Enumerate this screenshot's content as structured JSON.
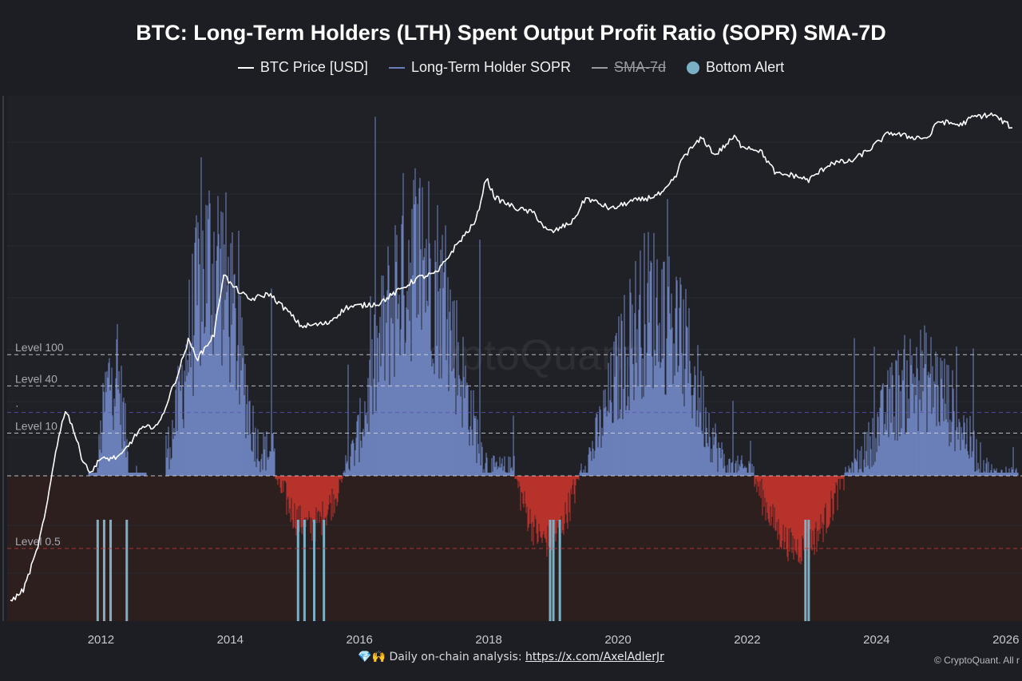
{
  "chart_data": {
    "type": "line",
    "title": "BTC: Long-Term Holders (LTH) Spent Output Profit Ratio (SOPR) SMA-7D",
    "legend": [
      {
        "name": "BTC Price [USD]",
        "color": "#ffffff",
        "marker": "line",
        "hidden": false
      },
      {
        "name": "Long-Term Holder SOPR",
        "color": "#6b7fb8",
        "marker": "line",
        "hidden": false
      },
      {
        "name": "SMA-7d",
        "color": "#9a9aa2",
        "marker": "line",
        "hidden": true
      },
      {
        "name": "Bottom Alert",
        "color": "#7ab0c6",
        "marker": "dot",
        "hidden": false
      }
    ],
    "x_axis": {
      "range": [
        2010.55,
        2026.25
      ],
      "ticks": [
        "2012",
        "2014",
        "2016",
        "2018",
        "2020",
        "2022",
        "2024",
        "2026"
      ]
    },
    "price_axis": {
      "scale": "log",
      "range_usd": [
        0.04,
        200000
      ]
    },
    "sopr_axis": {
      "range": [
        0,
        7
      ],
      "threshold": 1
    },
    "levels": [
      {
        "label": "Level 100",
        "value": 100,
        "axis": "price",
        "color": "#d8d8dc"
      },
      {
        "label": "Level 40",
        "value": 40,
        "axis": "price",
        "color": "#d8d8dc"
      },
      {
        "label": "Level 10",
        "value": 10,
        "axis": "price",
        "color": "#d8d8dc"
      },
      {
        "label": "·",
        "value": 2,
        "axis": "sopr",
        "color": "#5a55b8"
      },
      {
        "label": "",
        "value": 1,
        "axis": "sopr",
        "color": "#d8d8dc"
      },
      {
        "label": "Level 0.5",
        "value": 0.5,
        "axis": "sopr",
        "color": "#c23a3a"
      }
    ],
    "btc_price_series": {
      "name": "BTC Price [USD]",
      "x": [
        2010.6,
        2010.8,
        2011.0,
        2011.15,
        2011.3,
        2011.45,
        2011.55,
        2011.7,
        2011.85,
        2011.95,
        2012.3,
        2012.6,
        2012.9,
        2013.2,
        2013.35,
        2013.5,
        2013.75,
        2013.9,
        2014.0,
        2014.3,
        2014.6,
        2014.9,
        2015.1,
        2015.5,
        2015.8,
        2016.0,
        2016.3,
        2016.6,
        2016.9,
        2017.2,
        2017.5,
        2017.8,
        2017.96,
        2018.1,
        2018.4,
        2018.7,
        2018.9,
        2019.0,
        2019.3,
        2019.5,
        2019.7,
        2019.9,
        2020.2,
        2020.4,
        2020.7,
        2020.9,
        2021.0,
        2021.3,
        2021.5,
        2021.8,
        2021.9,
        2022.2,
        2022.45,
        2022.7,
        2022.95,
        2023.3,
        2023.6,
        2023.9,
        2024.2,
        2024.5,
        2024.8,
        2024.95,
        2025.3,
        2025.5,
        2025.8,
        2026.1
      ],
      "y": [
        0.07,
        0.1,
        0.3,
        1.0,
        6,
        20,
        13,
        5,
        3,
        4.5,
        5,
        11,
        13,
        60,
        150,
        90,
        180,
        1100,
        800,
        500,
        600,
        350,
        230,
        250,
        400,
        420,
        450,
        650,
        950,
        1100,
        2500,
        5000,
        18000,
        10000,
        7500,
        6400,
        3800,
        3700,
        5000,
        10000,
        8500,
        7200,
        9000,
        9600,
        11500,
        19000,
        33000,
        58000,
        35000,
        60000,
        47000,
        40000,
        20000,
        19500,
        16800,
        28000,
        29000,
        42000,
        68000,
        60000,
        58000,
        95000,
        85000,
        108000,
        115000,
        78000
      ]
    },
    "lth_sopr_cycles": [
      {
        "start": 2011.8,
        "end": 2012.7,
        "peak_value": 3.5,
        "low_value": 0.2
      },
      {
        "start": 2013.0,
        "end": 2014.7,
        "peak_value": 5.9,
        "low_value": 1.4
      },
      {
        "start": 2014.7,
        "end": 2015.75,
        "peak_value": 1.0,
        "low_value": 0.55
      },
      {
        "start": 2015.75,
        "end": 2018.4,
        "peak_value": 6.0,
        "low_value": 1.1
      },
      {
        "start": 2018.4,
        "end": 2019.4,
        "peak_value": 1.0,
        "low_value": 0.45
      },
      {
        "start": 2019.4,
        "end": 2022.1,
        "peak_value": 4.9,
        "low_value": 1.1
      },
      {
        "start": 2022.1,
        "end": 2023.5,
        "peak_value": 1.0,
        "low_value": 0.4
      },
      {
        "start": 2023.5,
        "end": 2026.2,
        "peak_value": 3.4,
        "low_value": 1.0
      }
    ],
    "bottom_alerts_x": [
      2011.95,
      2012.05,
      2012.15,
      2012.4,
      2015.05,
      2015.15,
      2015.3,
      2015.45,
      2018.95,
      2019.0,
      2019.1,
      2022.9,
      2022.95
    ],
    "watermark": "CryptoQuant"
  },
  "footer": {
    "emoji": "💎🙌",
    "text": "Daily on-chain analysis:",
    "link": "https://x.com/AxelAdlerJr",
    "copyright": "© CryptoQuant. All r"
  },
  "colors": {
    "background": "#1d1e23",
    "plot_background": "#202127",
    "sopr_above": "#6b7fb8",
    "sopr_below": "#b8322c",
    "below_fill": "#2e1f1f",
    "bottom_alert": "#7ab0c6"
  }
}
